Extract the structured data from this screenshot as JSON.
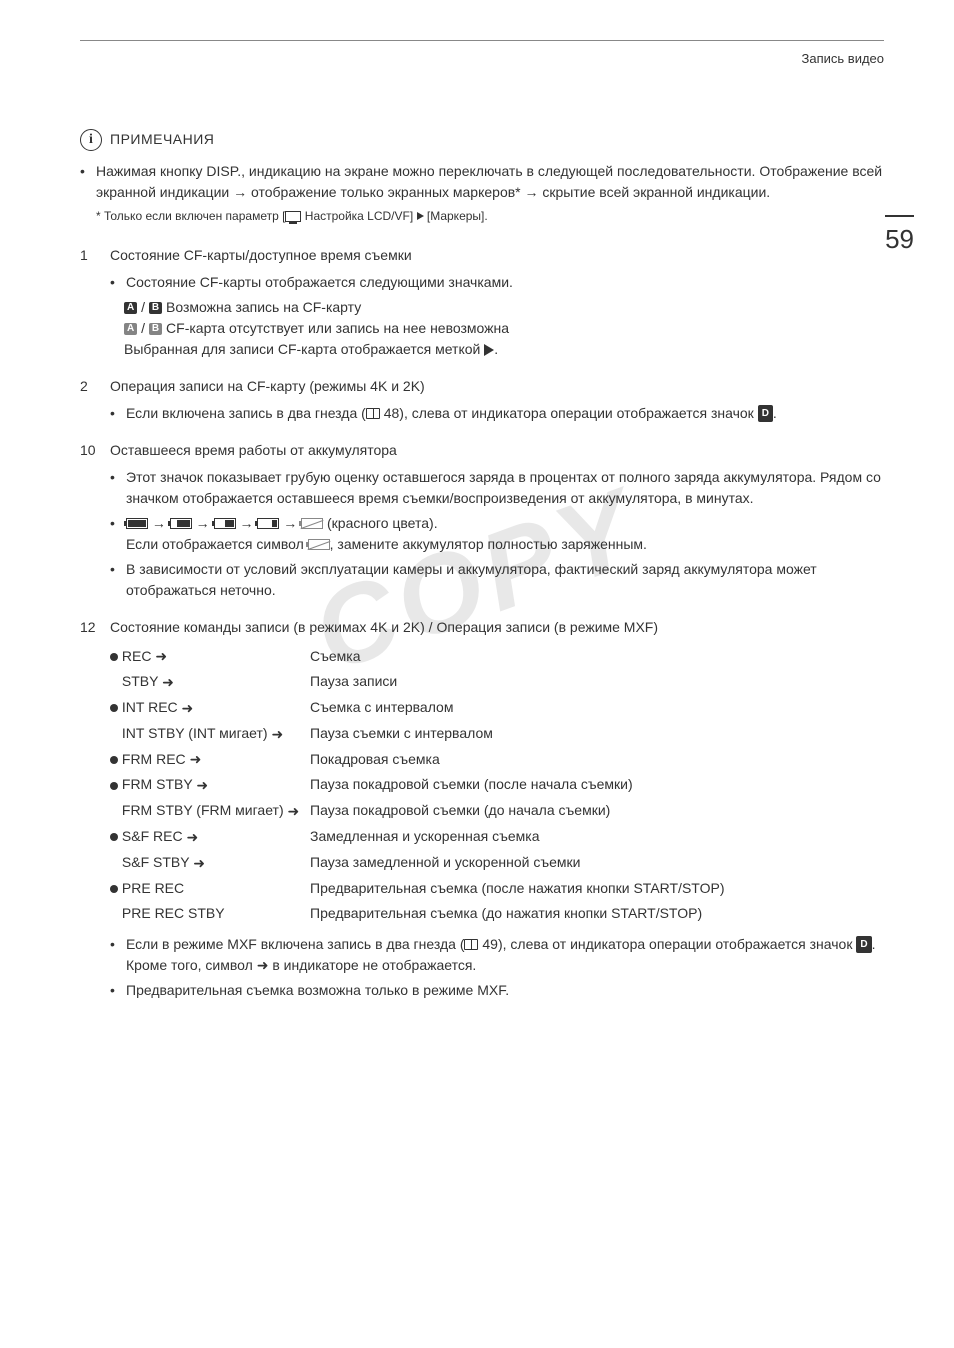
{
  "header": {
    "breadcrumb": "Запись видео"
  },
  "page_number": "59",
  "notes": {
    "title": "ПРИМЕЧАНИЯ",
    "main_bullet": "Нажимая кнопку DISP., индикацию на экране можно переключать в следующей последовательности. Отображение всей экранной индикации → отображение только экранных маркеров* → скрытие всей экранной индикации.",
    "footnote_prefix": "* Только если включен параметр [",
    "footnote_mid": " Настройка LCD/VF] ",
    "footnote_suffix": " [Маркеры]."
  },
  "sections": [
    {
      "num": "1",
      "title": "Состояние CF-карты/доступное время съемки",
      "items": [
        {
          "text": "Состояние CF-карты отображается следующими значками."
        }
      ],
      "sub_lines": [
        {
          "icons": "AB",
          "text": " Возможна запись на CF-карту"
        },
        {
          "icons": "AB_off",
          "text": " CF-карта отсутствует или запись на нее невозможна"
        },
        {
          "plain": true,
          "text_prefix": "Выбранная для записи CF-карта отображается меткой ",
          "text_suffix": "."
        }
      ]
    },
    {
      "num": "2",
      "title": "Операция записи на CF-карту (режимы 4K и 2K)",
      "items": [
        {
          "text_prefix": "Если включена запись в два гнезда (",
          "ref": "48",
          "text_suffix": "), слева от индикатора операции отображается значок ",
          "end_icon": true,
          "end": "."
        }
      ]
    },
    {
      "num": "10",
      "title": "Оставшееся время работы от аккумулятора",
      "items": [
        {
          "text": "Этот значок показывает грубую оценку оставшегося заряда в процентах от полного заряда аккумулятора. Рядом со значком отображается оставшееся время съемки/воспроизведения от аккумулятора, в минутах."
        },
        {
          "battery": true,
          "text_suffix": " (красного цвета).",
          "line2_prefix": "Если отображается символ ",
          "line2_suffix": ", замените аккумулятор полностью заряженным."
        },
        {
          "text": "В зависимости от условий эксплуатации камеры и аккумулятора, фактический заряд аккумулятора может отображаться неточно."
        }
      ]
    },
    {
      "num": "12",
      "title": "Состояние команды записи (в режимах 4K и 2K) / Операция записи (в режиме MXF)",
      "rec_table": [
        {
          "dot": true,
          "label": "REC",
          "arrow": true,
          "desc": "Съемка"
        },
        {
          "dot": false,
          "label": "STBY",
          "arrow": true,
          "desc": "Пауза записи"
        },
        {
          "dot": true,
          "label": "INT REC",
          "arrow": true,
          "desc": "Съемка с интервалом"
        },
        {
          "dot": false,
          "label": "INT STBY (INT мигает)",
          "arrow": true,
          "desc": "Пауза съемки с интервалом"
        },
        {
          "dot": true,
          "label": "FRM REC",
          "arrow": true,
          "desc": "Покадровая съемка"
        },
        {
          "dot": true,
          "label": "FRM STBY",
          "arrow": true,
          "desc": "Пауза покадровой съемки (после начала съемки)"
        },
        {
          "dot": false,
          "label": "FRM STBY (FRM мигает)",
          "arrow": true,
          "desc": "Пауза покадровой съемки (до начала съемки)"
        },
        {
          "dot": true,
          "label": "S&F REC",
          "arrow": true,
          "desc": "Замедленная и ускоренная съемка"
        },
        {
          "dot": false,
          "label": "S&F STBY",
          "arrow": true,
          "desc": "Пауза замедленной и ускоренной съемки"
        },
        {
          "dot": true,
          "label": "PRE REC",
          "arrow": false,
          "desc": "Предварительная съемка (после нажатия кнопки START/STOP)"
        },
        {
          "dot": false,
          "label": "PRE REC STBY",
          "arrow": false,
          "desc": "Предварительная съемка (до нажатия кнопки START/STOP)"
        }
      ],
      "tail_items": [
        {
          "text_prefix": "Если в режиме MXF включена запись в два гнезда (",
          "ref": "49",
          "text_mid": "), слева от индикатора операции отображается значок ",
          "text_mid2": ". Кроме того, символ ",
          "text_suffix": " в индикаторе не отображается."
        },
        {
          "text": "Предварительная съемка возможна только в режиме MXF."
        }
      ]
    }
  ],
  "watermark": "COPY"
}
